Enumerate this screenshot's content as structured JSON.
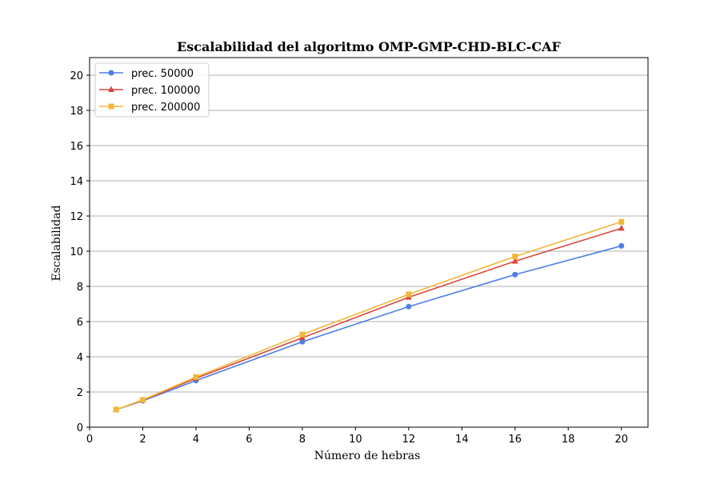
{
  "chart_data": {
    "type": "line",
    "title": "Escalabilidad del algoritmo OMP-GMP-CHD-BLC-CAF",
    "xlabel": "Número de hebras",
    "ylabel": "Escalabilidad",
    "xlim": [
      0,
      21
    ],
    "ylim": [
      0,
      21
    ],
    "xticks": [
      0,
      2,
      4,
      6,
      8,
      10,
      12,
      14,
      16,
      18,
      20
    ],
    "yticks": [
      0,
      2,
      4,
      6,
      8,
      10,
      12,
      14,
      16,
      18,
      20
    ],
    "grid": "horizontal",
    "legend_position": "top-left",
    "x": [
      1,
      2,
      4,
      8,
      12,
      16,
      20
    ],
    "series": [
      {
        "name": "prec. 50000",
        "color": "#4f7fe6",
        "marker": "circle",
        "values": [
          1.0,
          1.5,
          2.65,
          4.85,
          6.85,
          8.67,
          10.3
        ]
      },
      {
        "name": "prec. 100000",
        "color": "#d9473a",
        "marker": "triangle",
        "values": [
          1.0,
          1.53,
          2.78,
          5.08,
          7.38,
          9.43,
          11.3
        ]
      },
      {
        "name": "prec. 200000",
        "color": "#f2b73a",
        "marker": "square",
        "values": [
          1.0,
          1.55,
          2.85,
          5.27,
          7.55,
          9.7,
          11.67
        ]
      }
    ]
  }
}
